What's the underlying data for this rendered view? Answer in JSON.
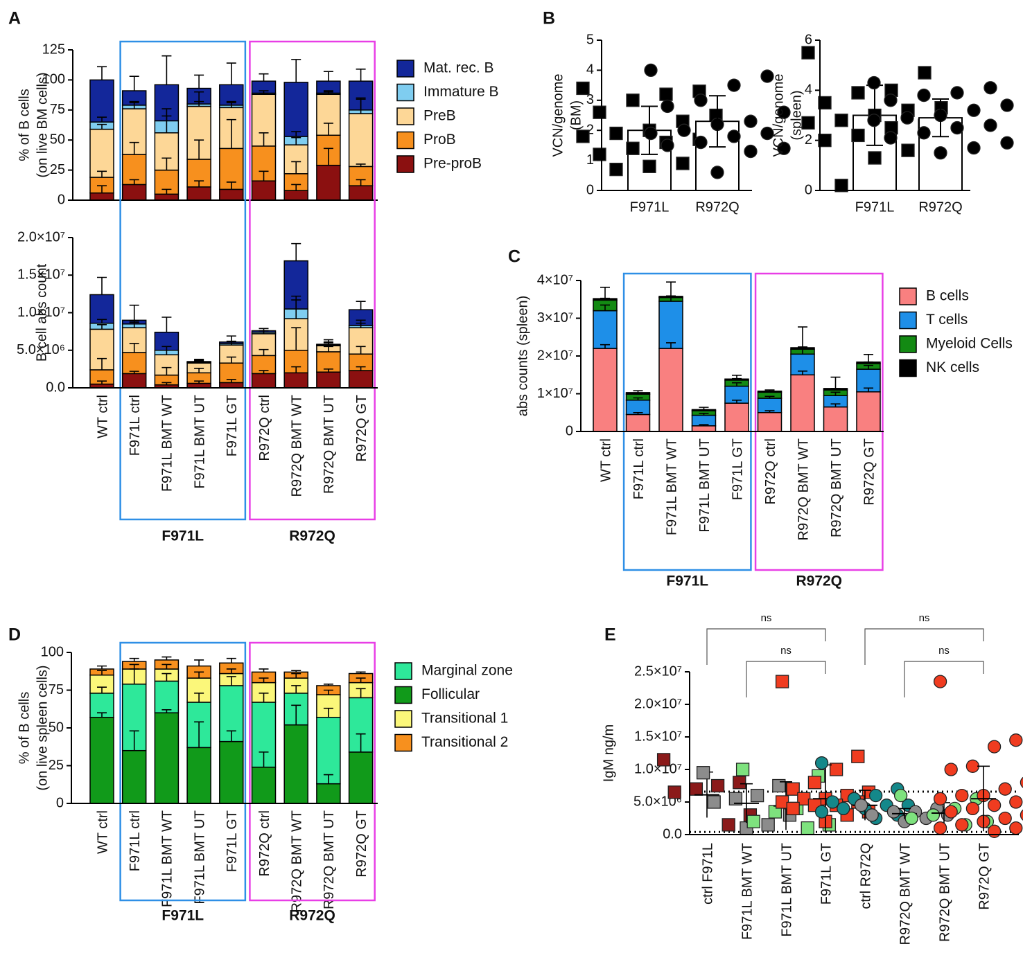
{
  "chart_data": [
    {
      "panel": "A",
      "type": "stacked_bar",
      "ylabel": [
        "% of B cells",
        "(on live BM cells)"
      ],
      "ylim": [
        0,
        125
      ],
      "yticks": [
        0,
        25,
        50,
        75,
        100,
        125
      ],
      "legend_reversed": true,
      "series": [
        {
          "name": "Pre-proB",
          "color": "#8b1010",
          "values": [
            6,
            13,
            5,
            11,
            9,
            16,
            8,
            29,
            12
          ],
          "errors": [
            6,
            4,
            4,
            5,
            6,
            8,
            5,
            14,
            5
          ]
        },
        {
          "name": "ProB",
          "color": "#f7901e",
          "values": [
            13,
            25,
            20,
            23,
            34,
            29,
            14,
            25,
            16
          ],
          "errors": [
            5,
            10,
            10,
            16,
            24,
            11,
            10,
            10,
            2
          ]
        },
        {
          "name": "PreB",
          "color": "#fdd797",
          "values": [
            40,
            38,
            31,
            44,
            34,
            43,
            24,
            34,
            44
          ],
          "errors": [
            4,
            6,
            14,
            12,
            4,
            1,
            6,
            2,
            12
          ]
        },
        {
          "name": "Immature B",
          "color": "#7fcdf0",
          "values": [
            6,
            3,
            10,
            2,
            2,
            1,
            7,
            1,
            3
          ],
          "errors": [
            4,
            2,
            10,
            2,
            3,
            2,
            4,
            2,
            10
          ]
        },
        {
          "name": "Mat. rec. B",
          "color": "#13279a",
          "values": [
            35,
            12,
            30,
            13,
            17,
            10,
            45,
            10,
            24
          ],
          "errors": [
            11,
            12,
            24,
            11,
            18,
            6,
            19,
            8,
            10
          ]
        }
      ]
    },
    {
      "type": "stacked_bar",
      "ylabel": [
        "B cell abs count"
      ],
      "ylim": [
        0,
        20000000
      ],
      "yticks": [
        {
          "value": 0,
          "label": "0.0"
        },
        {
          "value": 5000000,
          "label": "5.0×10⁶"
        },
        {
          "value": 10000000,
          "label": "1.0×10⁷"
        },
        {
          "value": 15000000,
          "label": "1.5×10⁷"
        },
        {
          "value": 20000000,
          "label": "2.0×10⁷"
        }
      ],
      "categories": [
        "WT ctrl",
        "F971L ctrl",
        "F971L BMT WT",
        "F971L BMT UT",
        "F971L GT",
        "R972Q ctrl",
        "R972Q BMT WT",
        "R972Q BMT UT",
        "R972Q GT"
      ],
      "groups": [
        {
          "name": "F971L",
          "color": "#2e8fe6",
          "span": [
            1,
            4
          ]
        },
        {
          "name": "R972Q",
          "color": "#e83ee6",
          "span": [
            5,
            8
          ]
        }
      ],
      "series": [
        {
          "name": "Pre-proB",
          "color": "#8b1010",
          "values": [
            500000,
            1900000,
            400000,
            600000,
            700000,
            1900000,
            2000000,
            2100000,
            2300000
          ],
          "errors": [
            400000,
            300000,
            300000,
            300000,
            400000,
            400000,
            800000,
            400000,
            500000
          ]
        },
        {
          "name": "ProB",
          "color": "#f7901e",
          "values": [
            1900000,
            2800000,
            1300000,
            1400000,
            2600000,
            2400000,
            3000000,
            2700000,
            2200000
          ],
          "errors": [
            1500000,
            1200000,
            1000000,
            600000,
            800000,
            800000,
            3000000,
            700000,
            1000000
          ]
        },
        {
          "name": "PreB",
          "color": "#fdd797",
          "values": [
            5400000,
            3300000,
            2700000,
            1300000,
            2400000,
            2900000,
            4200000,
            800000,
            3500000
          ],
          "errors": [
            600000,
            700000,
            600000,
            400000,
            400000,
            400000,
            3000000,
            500000,
            600000
          ]
        },
        {
          "name": "Immature B",
          "color": "#7fcdf0",
          "values": [
            800000,
            500000,
            600000,
            100000,
            200000,
            200000,
            1300000,
            100000,
            300000
          ],
          "errors": [
            500000,
            400000,
            500000,
            200000,
            300000,
            200000,
            1200000,
            300000,
            700000
          ]
        },
        {
          "name": "Mat. rec. B",
          "color": "#13279a",
          "values": [
            3800000,
            500000,
            2400000,
            100000,
            200000,
            200000,
            6400000,
            100000,
            2100000
          ],
          "errors": [
            2300000,
            2000000,
            2000000,
            300000,
            800000,
            300000,
            2300000,
            600000,
            1100000
          ]
        }
      ]
    },
    {
      "panel": "B",
      "type": "bar_scatter",
      "ylabel": [
        "VCN/genome",
        "(BM)"
      ],
      "ylim": [
        0,
        5
      ],
      "yticks": [
        0,
        1,
        2,
        3,
        4,
        5
      ],
      "categories": [
        "F971L",
        "R972Q"
      ],
      "values": [
        2.0,
        2.3
      ],
      "errors": [
        0.8,
        0.85
      ],
      "markers": [
        "square",
        "circle"
      ],
      "points": [
        [
          3.4,
          3.3,
          3.2,
          3.0,
          2.6,
          2.5,
          2.3,
          2.0,
          1.9,
          1.8,
          1.7,
          1.6,
          1.4,
          1.2,
          1.0,
          0.9,
          0.8,
          0.7
        ],
        [
          4.0,
          3.8,
          3.5,
          3.0,
          2.8,
          2.6,
          2.3,
          2.2,
          2.0,
          1.9,
          1.9,
          1.8,
          1.6,
          1.5,
          1.4,
          1.3,
          0.6
        ]
      ]
    },
    {
      "type": "bar_scatter",
      "ylabel": [
        "VCN/genome",
        "(spleen)"
      ],
      "ylim": [
        0,
        6
      ],
      "yticks": [
        0,
        2,
        4,
        6
      ],
      "categories": [
        "F971L",
        "R972Q"
      ],
      "values": [
        3.0,
        2.9
      ],
      "errors": [
        1.2,
        0.75
      ],
      "markers": [
        "square",
        "circle"
      ],
      "points": [
        [
          5.5,
          4.7,
          4.0,
          3.9,
          3.5,
          3.3,
          3.2,
          3.0,
          2.8,
          2.7,
          2.6,
          2.5,
          2.2,
          2.0,
          1.8,
          1.6,
          1.3,
          0.2
        ],
        [
          4.3,
          4.1,
          3.9,
          3.8,
          3.6,
          3.4,
          3.2,
          3.0,
          2.9,
          2.8,
          2.6,
          2.5,
          2.3,
          2.1,
          1.9,
          1.7,
          1.5
        ]
      ]
    },
    {
      "panel": "C",
      "type": "stacked_bar",
      "ylabel": [
        "abs counts (spleen)"
      ],
      "ylim": [
        0,
        40000000
      ],
      "yticks": [
        0,
        {
          "value": 10000000,
          "label": "1×10⁷"
        },
        {
          "value": 20000000,
          "label": "2×10⁷"
        },
        {
          "value": 30000000,
          "label": "3×10⁷"
        },
        {
          "value": 40000000,
          "label": "4×10⁷"
        }
      ],
      "categories": [
        "WT ctrl",
        "F971L ctrl",
        "F971L BMT WT",
        "F971L BMT UT",
        "F971L GT",
        "R972Q ctrl",
        "R972Q BMT WT",
        "R972Q BMT UT",
        "R972Q GT"
      ],
      "groups": [
        {
          "name": "F971L",
          "color": "#2e8fe6",
          "span": [
            1,
            4
          ]
        },
        {
          "name": "R972Q",
          "color": "#e83ee6",
          "span": [
            5,
            8
          ]
        }
      ],
      "series": [
        {
          "name": "B cells",
          "color": "#f98080",
          "values": [
            22000000,
            4500000,
            22000000,
            1500000,
            7500000,
            5000000,
            15000000,
            6500000,
            10500000
          ],
          "errors": [
            1000000,
            500000,
            1500000,
            300000,
            800000,
            500000,
            1000000,
            800000,
            1000000
          ]
        },
        {
          "name": "T cells",
          "color": "#1e8fe8",
          "values": [
            10000000,
            3800000,
            12500000,
            2800000,
            4500000,
            3800000,
            5500000,
            3000000,
            6000000
          ],
          "errors": [
            1500000,
            600000,
            1200000,
            500000,
            900000,
            500000,
            1500000,
            900000,
            1000000
          ]
        },
        {
          "name": "Myeloid Cells",
          "color": "#138a13",
          "values": [
            2800000,
            1600000,
            1000000,
            1200000,
            1600000,
            1600000,
            1300000,
            1500000,
            1500000
          ],
          "errors": [
            500000,
            300000,
            400000,
            300000,
            400000,
            300000,
            600000,
            400000,
            400000
          ]
        },
        {
          "name": "NK cells",
          "color": "#000000",
          "values": [
            400000,
            400000,
            300000,
            300000,
            300000,
            300000,
            400000,
            400000,
            400000
          ],
          "errors": [
            3000000,
            500000,
            3800000,
            600000,
            1000000,
            300000,
            5500000,
            3000000,
            2000000
          ]
        }
      ]
    },
    {
      "panel": "D",
      "type": "stacked_bar",
      "ylabel": [
        "% of B cells",
        "(on live spleen cells)"
      ],
      "ylim": [
        0,
        100
      ],
      "yticks": [
        0,
        25,
        50,
        75,
        100
      ],
      "stack_order": [
        1,
        0,
        2,
        3
      ],
      "categories": [
        "WT ctrl",
        "F971L ctrl",
        "F971L BMT WT",
        "F971L BMT UT",
        "F971L GT",
        "R972Q ctrl",
        "R972Q BMT WT",
        "R972Q BMT UT",
        "R972Q GT"
      ],
      "groups": [
        {
          "name": "F971L",
          "color": "#2e8fe6",
          "span": [
            1,
            4
          ]
        },
        {
          "name": "R972Q",
          "color": "#e83ee6",
          "span": [
            5,
            8
          ]
        }
      ],
      "series": [
        {
          "name": "Marginal zone",
          "color": "#2ee89a",
          "values": [
            16,
            44,
            21,
            30,
            37,
            43,
            21,
            44,
            36
          ],
          "errors": [
            4,
            10,
            5,
            6,
            6,
            6,
            5,
            6,
            6
          ]
        },
        {
          "name": "Follicular",
          "color": "#119a1a",
          "values": [
            57,
            35,
            60,
            37,
            41,
            24,
            52,
            13,
            34
          ],
          "errors": [
            3,
            13,
            2,
            17,
            7,
            10,
            13,
            6,
            12
          ]
        },
        {
          "name": "Transitional 1",
          "color": "#fbf77a",
          "values": [
            12,
            10,
            8,
            16,
            8,
            13,
            10,
            15,
            10
          ],
          "errors": [
            3,
            3,
            3,
            4,
            3,
            3,
            3,
            3,
            3
          ]
        },
        {
          "name": "Transitional 2",
          "color": "#f7901e",
          "values": [
            4,
            5,
            6,
            8,
            7,
            7,
            4,
            6,
            6
          ],
          "errors": [
            2,
            2,
            2,
            4,
            3,
            2,
            1,
            1,
            1
          ]
        }
      ]
    },
    {
      "panel": "E",
      "type": "dot_plot",
      "ylabel": [
        "IgM ng/m"
      ],
      "ylim": [
        0,
        25000000
      ],
      "yticks": [
        {
          "value": 0,
          "label": "0.0"
        },
        {
          "value": 5000000,
          "label": "5.0×10⁶"
        },
        {
          "value": 10000000,
          "label": "1.0×10⁷"
        },
        {
          "value": 15000000,
          "label": "1.5×10⁷"
        },
        {
          "value": 20000000,
          "label": "2.0×10⁷"
        },
        {
          "value": 25000000,
          "label": "2.5×10⁷"
        }
      ],
      "categories": [
        "ctrl F971L",
        "F971L BMT WT",
        "F971L BMT UT",
        "F971L GT",
        "ctrl R972Q",
        "R972Q BMT WT",
        "R972Q BMT UT",
        "R972Q GT"
      ],
      "colors": [
        "#8b1a1a",
        "#8c8c8c",
        "#7ee27e",
        "#f03c20",
        "#14888a",
        "#8c8c8c",
        "#7ee27e",
        "#f03c20"
      ],
      "markers": [
        "square",
        "square",
        "square",
        "square",
        "circle",
        "circle",
        "circle",
        "circle"
      ],
      "means": [
        6100000,
        4800000,
        4400000,
        5500000,
        4500000,
        3200000,
        3300000,
        5500000
      ],
      "sd": [
        3500000,
        3000000,
        3700000,
        5200000,
        2300000,
        800000,
        1600000,
        5000000
      ],
      "points": [
        [
          11500000,
          8000000,
          7500000,
          7000000,
          6500000,
          3000000,
          1500000
        ],
        [
          9500000,
          7500000,
          6000000,
          5500000,
          5000000,
          3000000,
          1500000,
          1000000
        ],
        [
          10000000,
          9000000,
          4000000,
          3500000,
          2000000,
          1500000,
          1000000
        ],
        [
          23500000,
          12000000,
          10000000,
          8000000,
          7000000,
          6500000,
          6000000,
          5500000,
          5500000,
          5000000,
          5000000,
          4500000,
          4500000,
          4000000,
          3500000,
          3000000,
          2000000
        ],
        [
          11000000,
          7000000,
          6000000,
          5500000,
          5000000,
          4500000,
          4500000,
          4000000,
          4000000,
          3500000,
          3000000,
          2500000
        ],
        [
          4500000,
          4000000,
          3500000,
          3500000,
          3000000,
          3000000,
          2500000,
          2000000
        ],
        [
          6000000,
          5500000,
          4000000,
          3000000,
          2500000,
          2000000,
          1500000
        ],
        [
          23500000,
          14500000,
          13500000,
          10500000,
          10000000,
          8000000,
          7000000,
          6000000,
          6000000,
          5500000,
          5000000,
          4500000,
          4000000,
          3500000,
          3000000,
          2500000,
          2000000,
          1500000,
          1000000,
          1000000,
          500000
        ]
      ],
      "reference_lines": [
        6600000,
        400000
      ],
      "comparisons": [
        {
          "pair": [
            0,
            3
          ],
          "label": "ns"
        },
        {
          "pair": [
            1,
            3
          ],
          "label": "ns"
        },
        {
          "pair": [
            4,
            7
          ],
          "label": "ns"
        },
        {
          "pair": [
            5,
            7
          ],
          "label": "ns"
        }
      ]
    }
  ]
}
